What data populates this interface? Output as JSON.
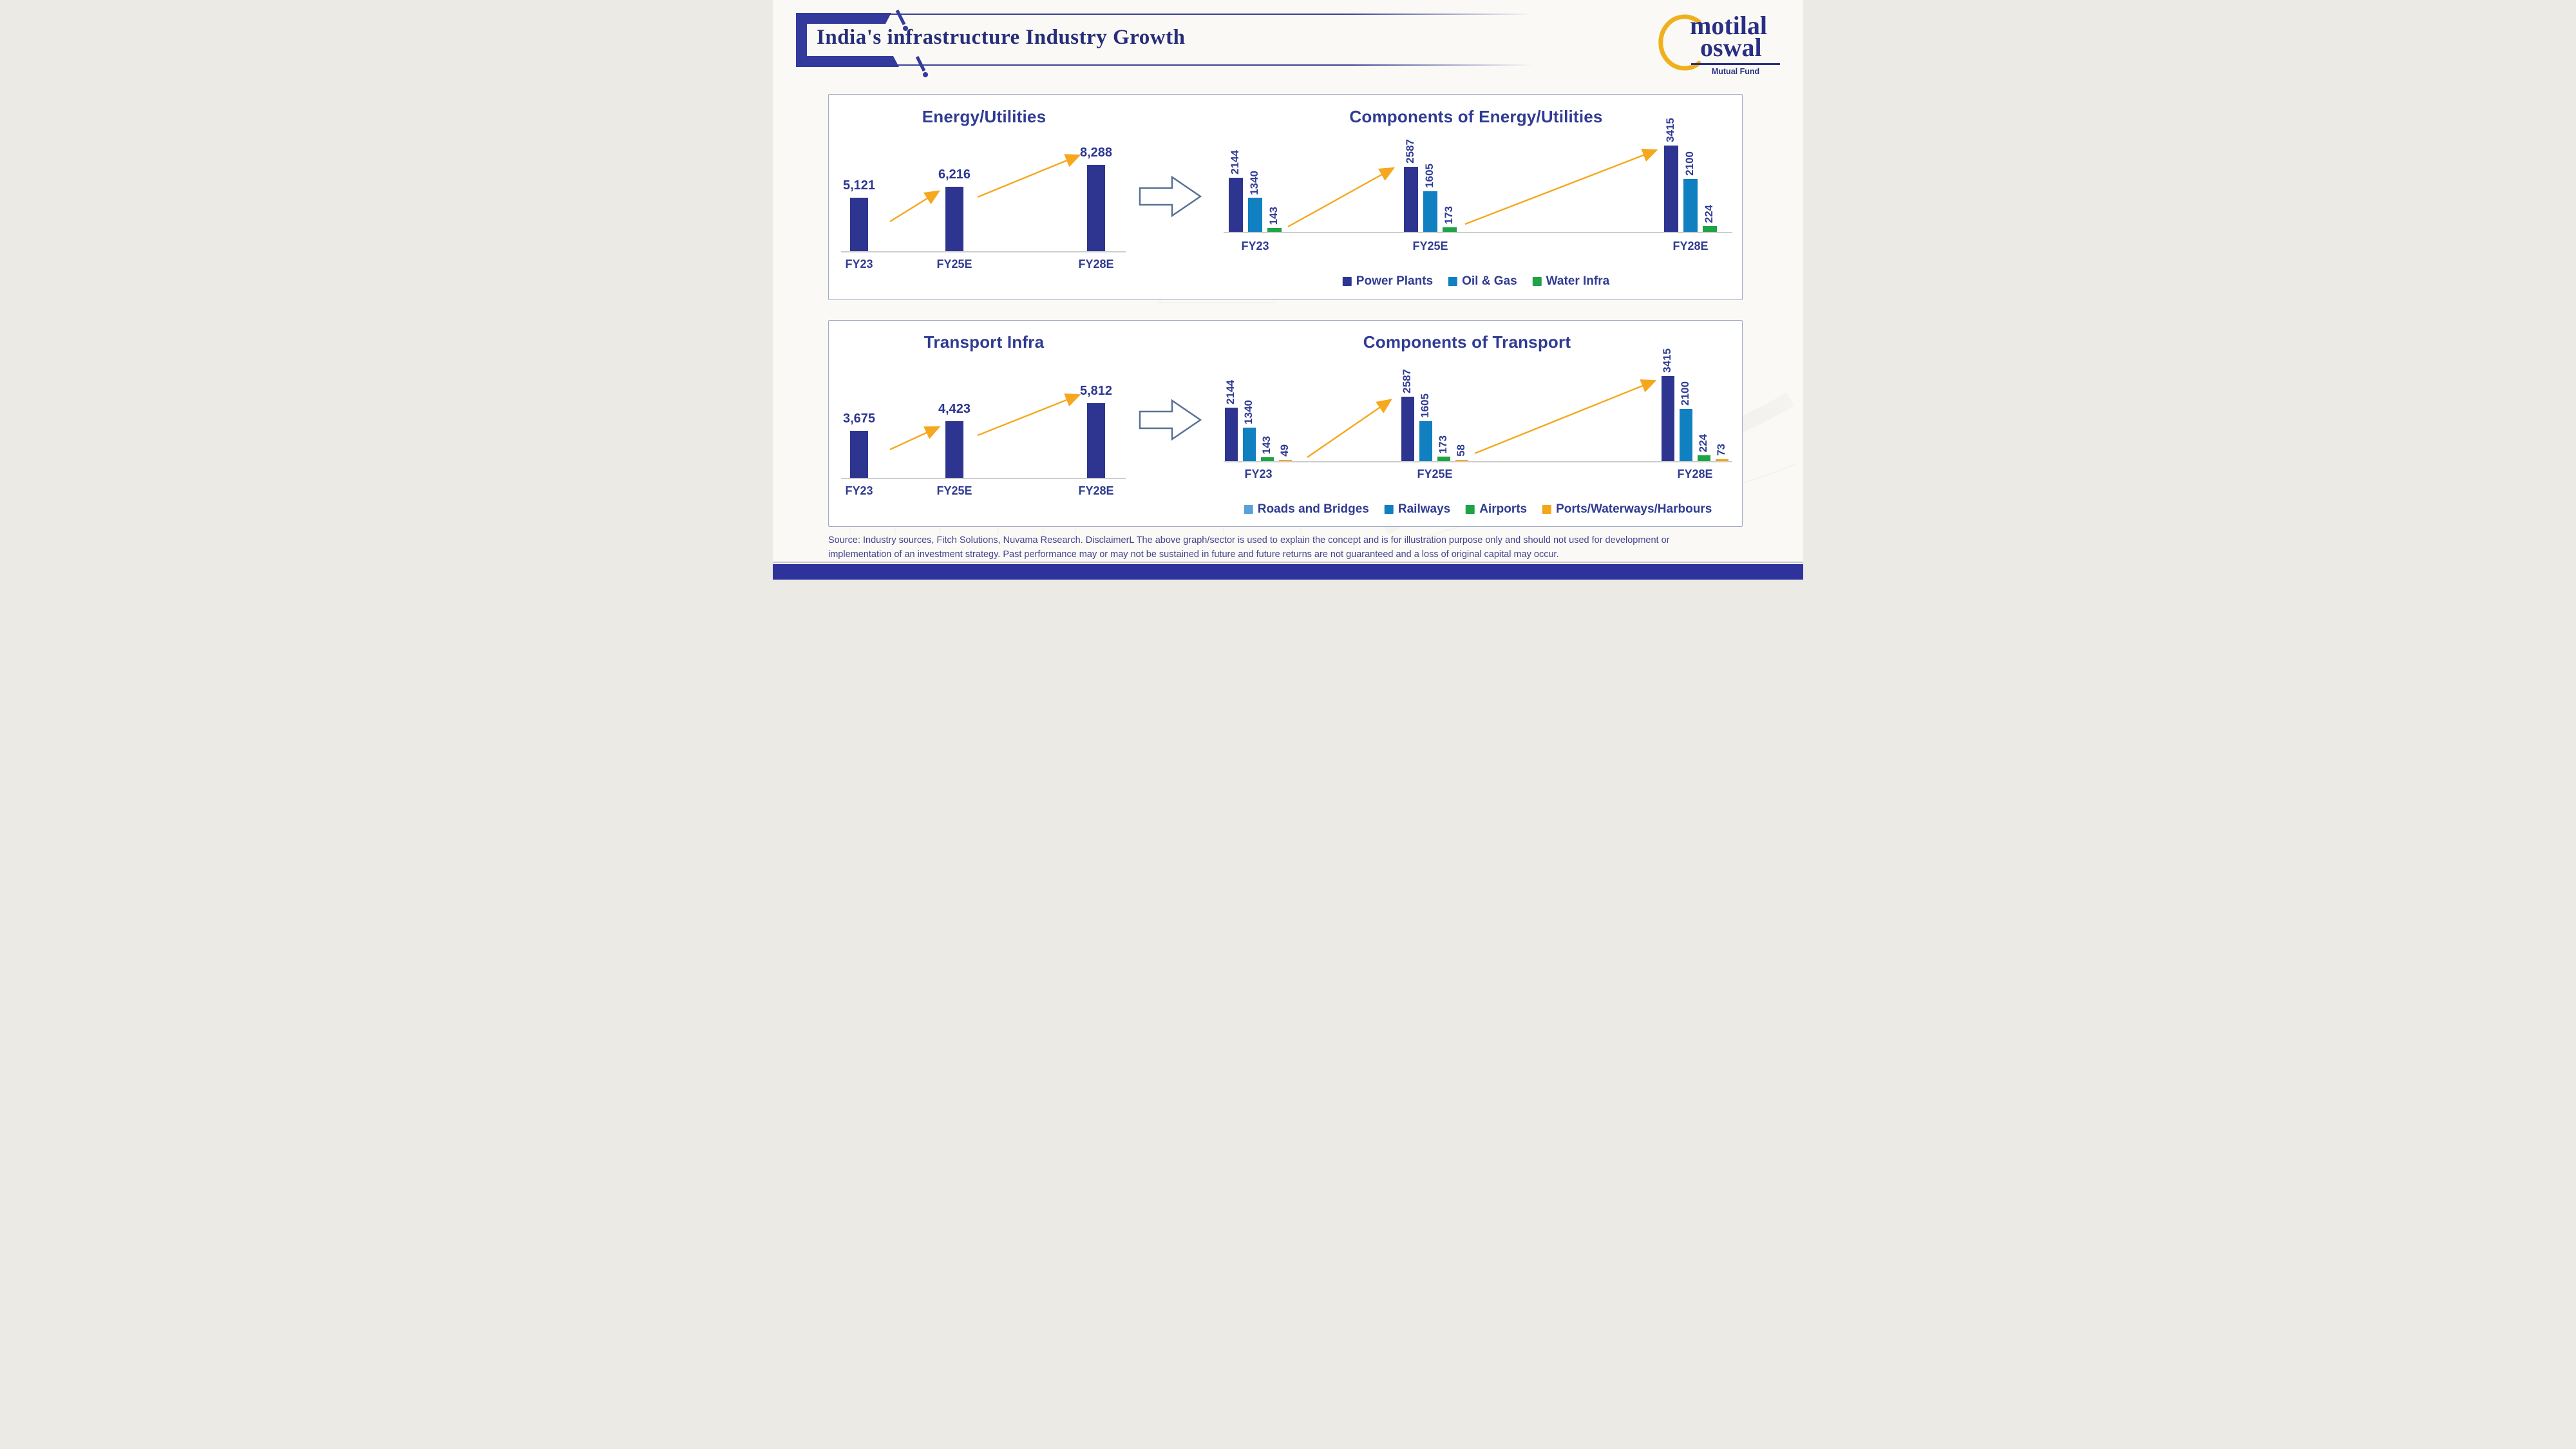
{
  "header": {
    "title": "India's infrastructure Industry Growth"
  },
  "logo": {
    "word1": "motilal",
    "word2": "oswal",
    "subtitle": "Mutual Fund"
  },
  "colors": {
    "navy": "#2d3590",
    "medium_blue": "#1080c0",
    "light_blue": "#5ba0d7",
    "green": "#1ea445",
    "amber": "#f2a71b",
    "arrow_orange": "#f5a81e",
    "text_navy": "#2f3b93",
    "footer_bar": "#2e339c",
    "logo_gold": "#f0b01e",
    "panel_border": "#a3abc6"
  },
  "chart_data": [
    {
      "type": "bar",
      "title": "Energy/Utilities",
      "categories": [
        "FY23",
        "FY25E",
        "FY28E"
      ],
      "values": [
        5121,
        6216,
        8288
      ],
      "value_labels": [
        "5,121",
        "6,216",
        "8,288"
      ],
      "xlabel": "",
      "ylabel": "",
      "ylim": [
        0,
        8288
      ],
      "grid": false,
      "legend_position": "none"
    },
    {
      "type": "bar",
      "title": "Components of Energy/Utilities",
      "categories": [
        "FY23",
        "FY25E",
        "FY28E"
      ],
      "series": [
        {
          "name": "Power Plants",
          "values": [
            2144,
            2587,
            3415
          ],
          "bar_color": "#2d3590",
          "legend_color": "#2d3590"
        },
        {
          "name": "Oil & Gas",
          "values": [
            1340,
            1605,
            2100
          ],
          "bar_color": "#1080c0",
          "legend_color": "#1080c0"
        },
        {
          "name": "Water Infra",
          "values": [
            143,
            173,
            224
          ],
          "bar_color": "#1ea445",
          "legend_color": "#1ea445"
        }
      ],
      "xlabel": "",
      "ylabel": "",
      "ylim": [
        0,
        3415
      ],
      "grid": false,
      "legend_position": "bottom"
    },
    {
      "type": "bar",
      "title": "Transport Infra",
      "categories": [
        "FY23",
        "FY25E",
        "FY28E"
      ],
      "values": [
        3675,
        4423,
        5812
      ],
      "value_labels": [
        "3,675",
        "4,423",
        "5,812"
      ],
      "xlabel": "",
      "ylabel": "",
      "ylim": [
        0,
        5812
      ],
      "grid": false,
      "legend_position": "none"
    },
    {
      "type": "bar",
      "title": "Components of Transport",
      "categories": [
        "FY23",
        "FY25E",
        "FY28E"
      ],
      "series": [
        {
          "name": "Roads and Bridges",
          "values": [
            2144,
            2587,
            3415
          ],
          "bar_color": "#2d3590",
          "legend_color": "#5ba0d7"
        },
        {
          "name": "Railways",
          "values": [
            1340,
            1605,
            2100
          ],
          "bar_color": "#1080c0",
          "legend_color": "#1080c0"
        },
        {
          "name": "Airports",
          "values": [
            143,
            173,
            224
          ],
          "bar_color": "#1ea445",
          "legend_color": "#1ea445"
        },
        {
          "name": "Ports/Waterways/Harbours",
          "values": [
            49,
            58,
            73
          ],
          "bar_color": "#f2a71b",
          "legend_color": "#f2a71b"
        }
      ],
      "xlabel": "",
      "ylabel": "",
      "ylim": [
        0,
        3415
      ],
      "grid": false,
      "legend_position": "bottom"
    }
  ],
  "footer": {
    "source_line1": "Source: Industry sources, Fitch Solutions, Nuvama Research.  DisclaimerL The above graph/sector is used to explain the concept and is for illustration purpose only and should not used for development or",
    "source_line2": "implementation of an investment strategy. Past performance may or may not be sustained in future and future returns are not guaranteed and a loss of original capital may occur."
  }
}
